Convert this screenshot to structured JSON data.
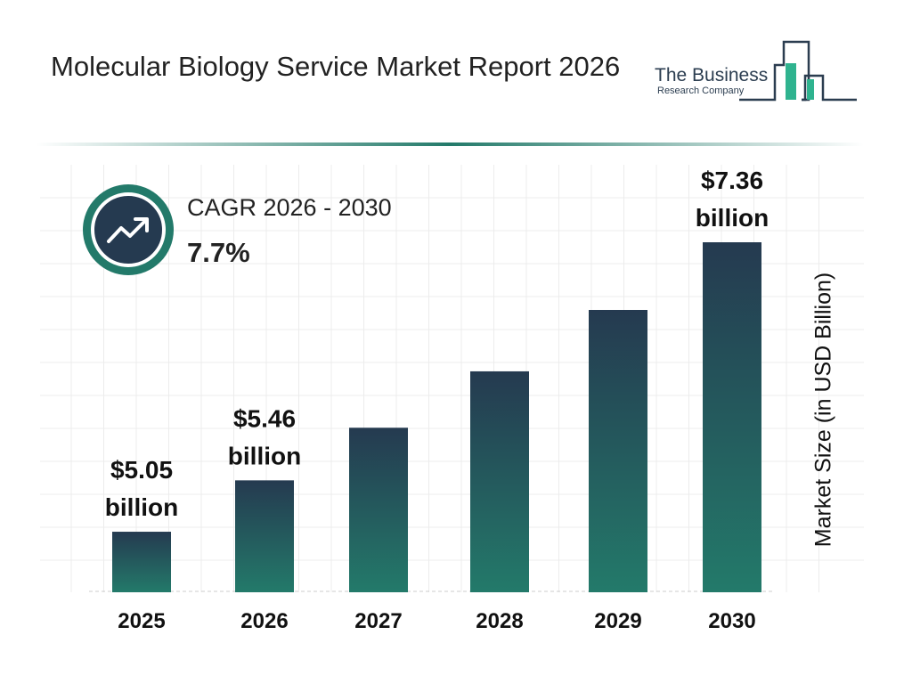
{
  "header": {
    "title": "Molecular Biology Service Market Report 2026"
  },
  "logo": {
    "line1": "The Business",
    "line2": "Research Company"
  },
  "cagr": {
    "label": "CAGR 2026 - 2030",
    "value": "7.7%",
    "icon": "trend-up-icon"
  },
  "colors": {
    "bar_top": "#253a50",
    "bar_bottom": "#237a6a",
    "accent": "#237a6a"
  },
  "chart_data": {
    "type": "bar",
    "title": "Molecular Biology Service Market Report 2026",
    "categories": [
      "2025",
      "2026",
      "2027",
      "2028",
      "2029",
      "2030"
    ],
    "values": [
      5.05,
      5.46,
      5.88,
      6.33,
      6.82,
      7.36
    ],
    "data_labels": [
      [
        "$5.05",
        "billion"
      ],
      [
        "$5.46",
        "billion"
      ],
      null,
      null,
      null,
      [
        "$7.36",
        "billion"
      ]
    ],
    "xlabel": "",
    "ylabel": "Market Size (in USD Billion)",
    "grid": true
  }
}
